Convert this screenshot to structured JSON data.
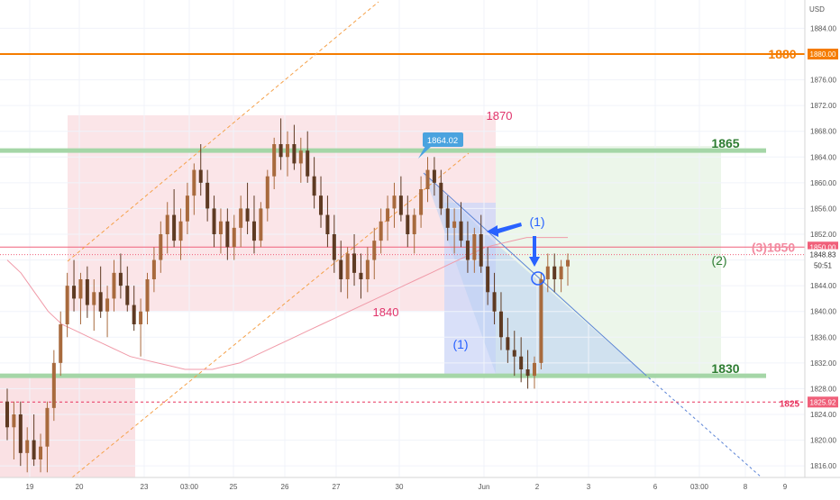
{
  "chart_data": {
    "type": "candlestick",
    "currency": "USD",
    "x_ticks": [
      "19",
      "20",
      "23",
      "03:00",
      "25",
      "26",
      "27",
      "30",
      "Jun",
      "2",
      "3",
      "6",
      "03:00",
      "8",
      "9"
    ],
    "y_ticks": [
      "1816.00",
      "1820.00",
      "1824.00",
      "1828.00",
      "1832.00",
      "1836.00",
      "1840.00",
      "1844.00",
      "1848.00",
      "1852.00",
      "1856.00",
      "1860.00",
      "1864.00",
      "1868.00",
      "1872.00",
      "1876.00",
      "1880.00",
      "1884.00"
    ],
    "ylim": [
      1814.2,
      1888.4
    ],
    "price_tags": [
      {
        "label": "1880.00",
        "value": 1880.0,
        "bg": "#f57c00",
        "fg": "#ffffff"
      },
      {
        "label": "1850.00",
        "value": 1850.0,
        "bg": "#f0607a",
        "fg": "#ffffff"
      },
      {
        "label": "1848.83",
        "value": 1848.83,
        "bg": "#ffffff",
        "fg": "#333333"
      },
      {
        "label": "50:51",
        "value": 1847.2,
        "bg": "#ffffff",
        "fg": "#333333"
      },
      {
        "label": "1825.92",
        "value": 1825.92,
        "bg": "#f0607a",
        "fg": "#ffffff"
      }
    ],
    "levels": [
      {
        "value": 1880,
        "label": "1880",
        "color": "#f57c00",
        "style": "solid"
      },
      {
        "value": 1865,
        "label": "1865",
        "color": "#3e8e41",
        "style": "band"
      },
      {
        "value": 1850,
        "label": "(3)1850",
        "color": "#f0607a",
        "style": "thin"
      },
      {
        "value": 1830,
        "label": "1830",
        "color": "#3e8e41",
        "style": "band"
      },
      {
        "value": 1825.92,
        "label": "1825",
        "color": "#e8335e",
        "style": "dashed"
      }
    ],
    "annotations": [
      {
        "text": "1870",
        "color": "#e0336b"
      },
      {
        "text": "1840",
        "color": "#e0336b"
      },
      {
        "text": "(1)",
        "color": "#2962ff"
      },
      {
        "text": "(1)",
        "color": "#2962ff"
      },
      {
        "text": "(2)",
        "color": "#2e7d32"
      },
      {
        "text": "1864.02",
        "color": "#ffffff",
        "bg": "#4aa3df"
      }
    ],
    "series": [
      {
        "kind": "ohlc",
        "candles": [
          [
            1826,
            1828,
            1820,
            1822
          ],
          [
            1822,
            1826,
            1817,
            1824
          ],
          [
            1824,
            1826,
            1816,
            1818
          ],
          [
            1818,
            1822,
            1815,
            1820
          ],
          [
            1820,
            1824,
            1816,
            1817
          ],
          [
            1817,
            1821,
            1815,
            1819
          ],
          [
            1819,
            1826,
            1815,
            1825
          ],
          [
            1825,
            1834,
            1823,
            1832
          ],
          [
            1832,
            1840,
            1830,
            1838
          ],
          [
            1838,
            1846,
            1836,
            1844
          ],
          [
            1844,
            1848,
            1840,
            1842
          ],
          [
            1842,
            1846,
            1838,
            1845
          ],
          [
            1845,
            1847,
            1839,
            1841
          ],
          [
            1841,
            1845,
            1837,
            1843
          ],
          [
            1843,
            1847,
            1839,
            1840
          ],
          [
            1840,
            1844,
            1836,
            1842
          ],
          [
            1842,
            1848,
            1840,
            1846
          ],
          [
            1846,
            1849,
            1842,
            1844
          ],
          [
            1844,
            1847,
            1840,
            1841
          ],
          [
            1841,
            1844,
            1837,
            1838
          ],
          [
            1838,
            1842,
            1833,
            1840
          ],
          [
            1840,
            1846,
            1838,
            1845
          ],
          [
            1845,
            1850,
            1843,
            1848
          ],
          [
            1848,
            1854,
            1846,
            1852
          ],
          [
            1852,
            1857,
            1849,
            1855
          ],
          [
            1855,
            1859,
            1850,
            1851
          ],
          [
            1851,
            1856,
            1848,
            1854
          ],
          [
            1854,
            1860,
            1852,
            1858
          ],
          [
            1858,
            1863,
            1855,
            1862
          ],
          [
            1862,
            1866,
            1858,
            1860
          ],
          [
            1860,
            1862,
            1854,
            1856
          ],
          [
            1856,
            1858,
            1850,
            1852
          ],
          [
            1852,
            1856,
            1849,
            1854
          ],
          [
            1854,
            1856,
            1848,
            1850
          ],
          [
            1850,
            1855,
            1848,
            1853
          ],
          [
            1853,
            1858,
            1850,
            1856
          ],
          [
            1856,
            1860,
            1852,
            1854
          ],
          [
            1854,
            1858,
            1849,
            1851
          ],
          [
            1851,
            1857,
            1850,
            1856
          ],
          [
            1856,
            1862,
            1854,
            1861
          ],
          [
            1861,
            1867,
            1859,
            1866
          ],
          [
            1866,
            1870,
            1862,
            1864
          ],
          [
            1864,
            1868,
            1861,
            1866
          ],
          [
            1866,
            1869,
            1862,
            1863
          ],
          [
            1863,
            1867,
            1860,
            1865
          ],
          [
            1865,
            1868,
            1860,
            1861
          ],
          [
            1861,
            1864,
            1856,
            1858
          ],
          [
            1858,
            1861,
            1853,
            1855
          ],
          [
            1855,
            1858,
            1850,
            1852
          ],
          [
            1852,
            1855,
            1846,
            1848
          ],
          [
            1848,
            1851,
            1843,
            1845
          ],
          [
            1845,
            1850,
            1842,
            1849
          ],
          [
            1849,
            1852,
            1844,
            1846
          ],
          [
            1846,
            1849,
            1842,
            1845
          ],
          [
            1845,
            1850,
            1843,
            1848
          ],
          [
            1848,
            1853,
            1845,
            1851
          ],
          [
            1851,
            1856,
            1849,
            1854
          ],
          [
            1854,
            1858,
            1851,
            1856
          ],
          [
            1856,
            1860,
            1853,
            1858
          ],
          [
            1858,
            1861,
            1854,
            1855
          ],
          [
            1855,
            1858,
            1850,
            1852
          ],
          [
            1852,
            1856,
            1849,
            1855
          ],
          [
            1855,
            1861,
            1853,
            1859
          ],
          [
            1859,
            1864,
            1857,
            1862
          ],
          [
            1862,
            1864,
            1858,
            1860
          ],
          [
            1860,
            1862,
            1855,
            1856
          ],
          [
            1856,
            1858,
            1851,
            1853
          ],
          [
            1853,
            1856,
            1849,
            1854
          ],
          [
            1854,
            1857,
            1850,
            1851
          ],
          [
            1851,
            1854,
            1846,
            1848
          ],
          [
            1848,
            1853,
            1846,
            1852
          ],
          [
            1852,
            1855,
            1846,
            1847
          ],
          [
            1847,
            1850,
            1841,
            1843
          ],
          [
            1843,
            1846,
            1838,
            1840
          ],
          [
            1840,
            1843,
            1834,
            1836
          ],
          [
            1836,
            1839,
            1832,
            1834
          ],
          [
            1834,
            1837,
            1830,
            1833
          ],
          [
            1833,
            1836,
            1829,
            1831
          ],
          [
            1831,
            1834,
            1828,
            1830
          ],
          [
            1830,
            1833,
            1828,
            1832
          ],
          [
            1832,
            1846,
            1831,
            1845
          ],
          [
            1845,
            1849,
            1843,
            1847
          ],
          [
            1847,
            1849,
            1843,
            1845
          ],
          [
            1845,
            1848,
            1843,
            1847
          ],
          [
            1847,
            1849,
            1844,
            1848
          ]
        ]
      },
      {
        "kind": "moving_average",
        "values": [
          1848,
          1846,
          1843,
          1840,
          1838,
          1837,
          1836,
          1835,
          1834,
          1833,
          1832.5,
          1832,
          1831.5,
          1831,
          1831,
          1831,
          1831.5,
          1832,
          1833,
          1834,
          1835,
          1836,
          1837,
          1838,
          1839,
          1840,
          1841,
          1842,
          1843,
          1844,
          1845,
          1846,
          1847,
          1848,
          1849,
          1850,
          1850.5,
          1851,
          1851.5,
          1851.5,
          1851.5,
          1851.5
        ]
      }
    ]
  }
}
